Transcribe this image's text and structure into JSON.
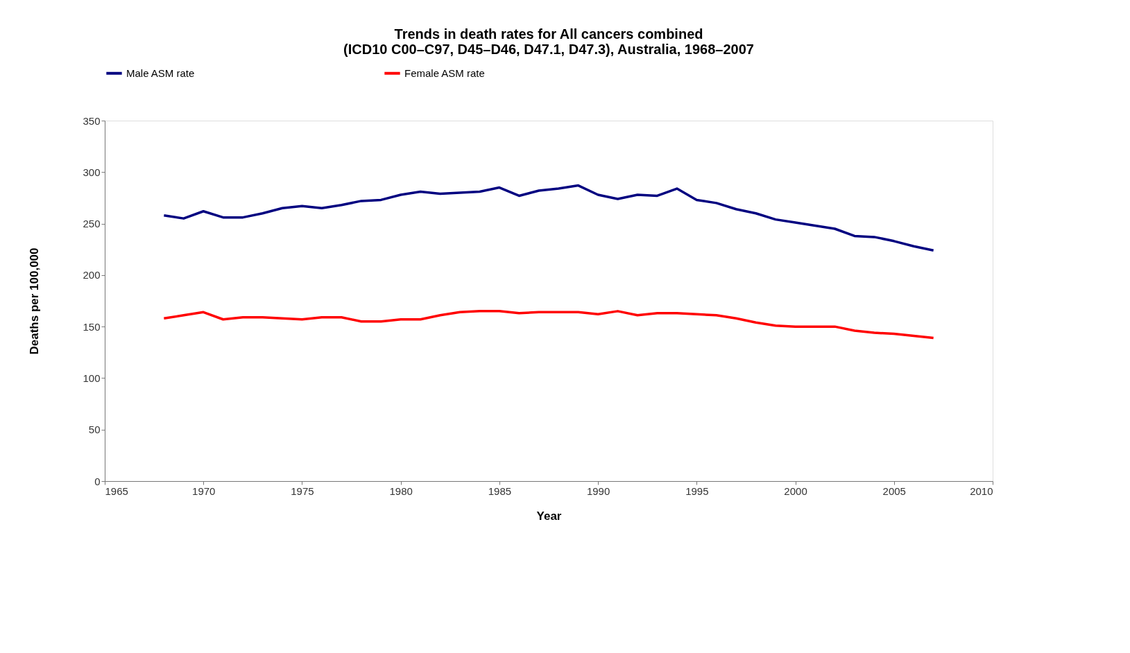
{
  "chart_data": {
    "type": "line",
    "title": "Trends in death rates for All cancers combined\n(ICD10 C00–C97, D45–D46, D47.1, D47.3), Australia, 1968–2007",
    "xlabel": "Year",
    "ylabel": "Deaths per 100,000",
    "x": [
      1968,
      1969,
      1970,
      1971,
      1972,
      1973,
      1974,
      1975,
      1976,
      1977,
      1978,
      1979,
      1980,
      1981,
      1982,
      1983,
      1984,
      1985,
      1986,
      1987,
      1988,
      1989,
      1990,
      1991,
      1992,
      1993,
      1994,
      1995,
      1996,
      1997,
      1998,
      1999,
      2000,
      2001,
      2002,
      2003,
      2004,
      2005,
      2006,
      2007
    ],
    "series": [
      {
        "name": "Male  ASM rate",
        "color": "#000080",
        "values": [
          258,
          255,
          262,
          256,
          256,
          260,
          265,
          267,
          265,
          268,
          272,
          273,
          278,
          281,
          279,
          280,
          281,
          285,
          277,
          282,
          284,
          287,
          278,
          274,
          278,
          277,
          284,
          273,
          270,
          264,
          260,
          254,
          251,
          248,
          245,
          238,
          237,
          233,
          228,
          224
        ]
      },
      {
        "name": "Female  ASM rate",
        "color": "#ff0000",
        "values": [
          158,
          161,
          164,
          157,
          159,
          159,
          158,
          157,
          159,
          159,
          155,
          155,
          157,
          157,
          161,
          164,
          165,
          165,
          163,
          164,
          164,
          164,
          162,
          165,
          161,
          163,
          163,
          162,
          161,
          158,
          154,
          151,
          150,
          150,
          150,
          146,
          144,
          143,
          141,
          139
        ]
      }
    ],
    "xlim": [
      1965,
      2010
    ],
    "xticks": [
      1965,
      1970,
      1975,
      1980,
      1985,
      1990,
      1995,
      2000,
      2005,
      2010
    ],
    "ylim": [
      0,
      350
    ],
    "yticks": [
      0,
      50,
      100,
      150,
      200,
      250,
      300,
      350
    ],
    "grid": false,
    "legend": "top",
    "marker": "none",
    "line_style": "solid"
  }
}
